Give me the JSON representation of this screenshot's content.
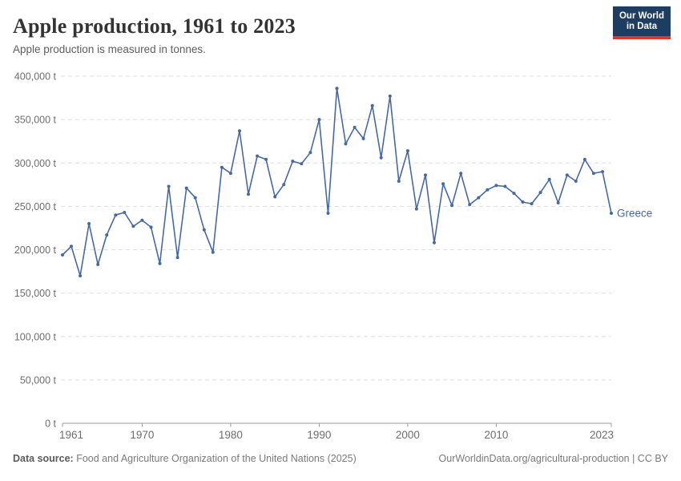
{
  "header": {
    "title": "Apple production, 1961 to 2023",
    "subtitle": "Apple production is measured in tonnes."
  },
  "logo": {
    "line1": "Our World",
    "line2": "in Data",
    "bg_color": "#1d3d63",
    "accent_color": "#e0362c"
  },
  "chart_data": {
    "type": "line",
    "title": "Apple production, 1961 to 2023",
    "unit": "tonnes",
    "grid": "horizontal-dashed",
    "legend": "series-end-label",
    "xlim": [
      1961,
      2023
    ],
    "ylim": [
      0,
      400000
    ],
    "x": [
      1961,
      1962,
      1963,
      1964,
      1965,
      1966,
      1967,
      1968,
      1969,
      1970,
      1971,
      1972,
      1973,
      1974,
      1975,
      1976,
      1977,
      1978,
      1979,
      1980,
      1981,
      1982,
      1983,
      1984,
      1985,
      1986,
      1987,
      1988,
      1989,
      1990,
      1991,
      1992,
      1993,
      1994,
      1995,
      1996,
      1997,
      1998,
      1999,
      2000,
      2001,
      2002,
      2003,
      2004,
      2005,
      2006,
      2007,
      2008,
      2009,
      2010,
      2011,
      2012,
      2013,
      2014,
      2015,
      2016,
      2017,
      2018,
      2019,
      2020,
      2021,
      2022,
      2023
    ],
    "series": [
      {
        "name": "Greece",
        "color": "#4669a5",
        "values": [
          194000,
          204000,
          170000,
          230000,
          183000,
          217000,
          240000,
          243000,
          227000,
          234000,
          226000,
          184000,
          273000,
          191000,
          271000,
          260000,
          223000,
          197000,
          295000,
          288000,
          337000,
          264000,
          308000,
          304000,
          261000,
          275000,
          302000,
          299000,
          312000,
          350000,
          242000,
          386000,
          322000,
          341000,
          328000,
          366000,
          306000,
          377000,
          279000,
          314000,
          247000,
          286000,
          208000,
          276000,
          251000,
          288000,
          252000,
          260000,
          269000,
          274000,
          273000,
          265000,
          255000,
          253000,
          266000,
          281000,
          254000,
          286000,
          279000,
          304000,
          288000,
          290000,
          242000
        ]
      }
    ],
    "y_ticks": [
      {
        "value": 0,
        "label": "0 t"
      },
      {
        "value": 50000,
        "label": "50,000 t"
      },
      {
        "value": 100000,
        "label": "100,000 t"
      },
      {
        "value": 150000,
        "label": "150,000 t"
      },
      {
        "value": 200000,
        "label": "200,000 t"
      },
      {
        "value": 250000,
        "label": "250,000 t"
      },
      {
        "value": 300000,
        "label": "300,000 t"
      },
      {
        "value": 350000,
        "label": "350,000 t"
      },
      {
        "value": 400000,
        "label": "400,000 t"
      }
    ],
    "x_ticks": [
      {
        "value": 1961,
        "label": "1961"
      },
      {
        "value": 1970,
        "label": "1970"
      },
      {
        "value": 1980,
        "label": "1980"
      },
      {
        "value": 1990,
        "label": "1990"
      },
      {
        "value": 2000,
        "label": "2000"
      },
      {
        "value": 2010,
        "label": "2010"
      },
      {
        "value": 2023,
        "label": "2023"
      }
    ]
  },
  "footer": {
    "source_label": "Data source:",
    "source_text": "Food and Agriculture Organization of the United Nations (2025)",
    "attribution": "OurWorldinData.org/agricultural-production | CC BY"
  }
}
